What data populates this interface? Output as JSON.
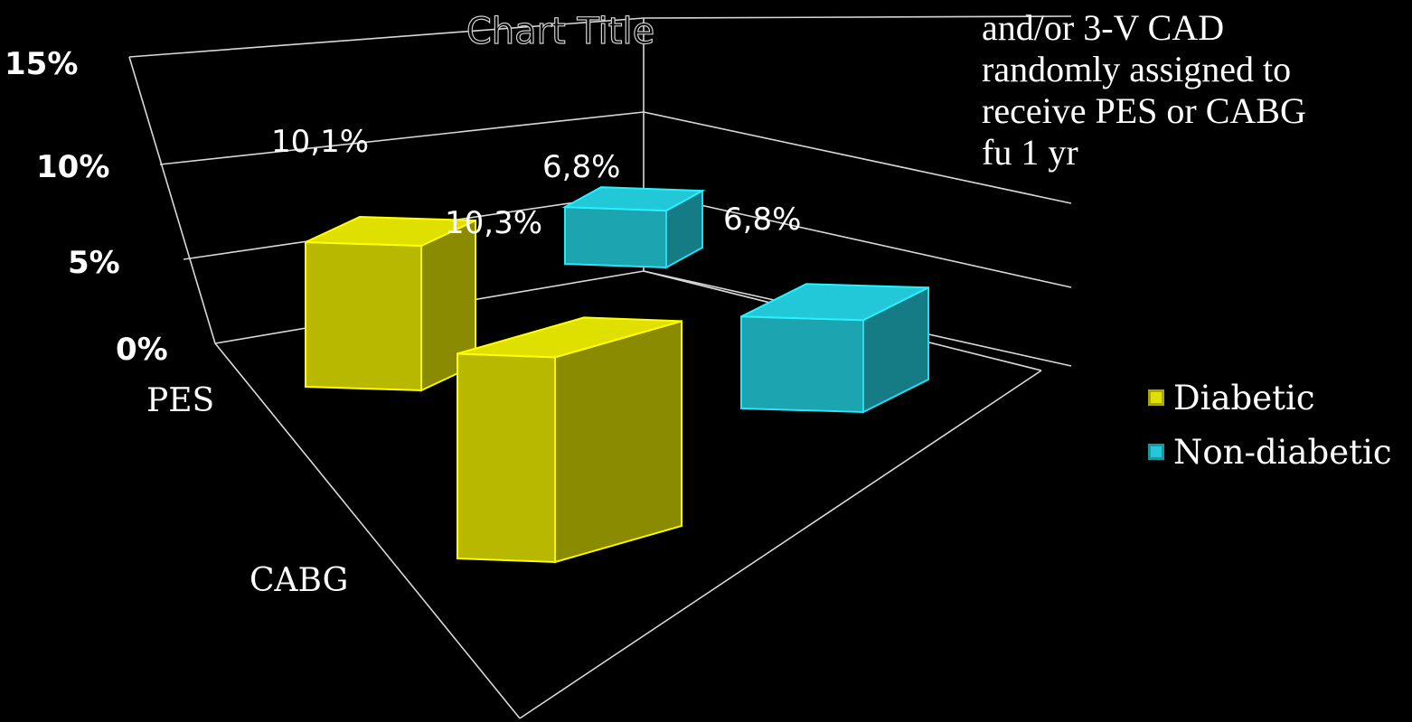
{
  "chart_data": {
    "type": "bar",
    "title": "",
    "categories": [
      "PES",
      "CABG"
    ],
    "series": [
      {
        "name": "Diabetic",
        "values": [
          10.1,
          10.3
        ],
        "labels": [
          "10,1%",
          "10,3%"
        ],
        "color": "#e0e000"
      },
      {
        "name": "Non-diabetic",
        "values": [
          6.8,
          6.8
        ],
        "labels": [
          "6,8%",
          "6,8%"
        ],
        "color": "#22c8d8"
      }
    ],
    "ylim": [
      0,
      15
    ],
    "yticks": [
      "0%",
      "5%",
      "10%",
      "15%"
    ],
    "legend_position": "right",
    "grid": true
  },
  "ghost_title": "Chart Title",
  "note_lines": [
    "and/or 3-V CAD",
    "randomly assigned  to",
    "receive PES or CABG",
    "fu 1 yr"
  ]
}
